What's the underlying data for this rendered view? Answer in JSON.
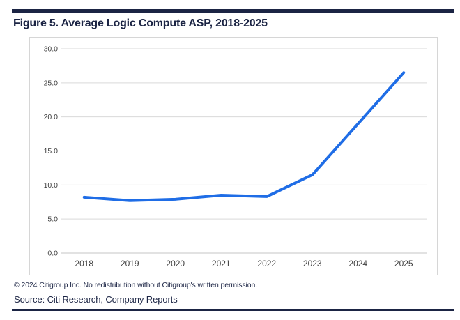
{
  "header": {
    "title": "Figure 5. Average Logic Compute ASP, 2018-2025"
  },
  "footer": {
    "copyright": "© 2024 Citigroup Inc. No redistribution without Citigroup's written permission.",
    "source": "Source: Citi Research, Company Reports"
  },
  "colors": {
    "navy": "#1b2444",
    "line": "#1f6de6",
    "gridline": "#d9d9d9",
    "axis_line": "#c4c4c4",
    "chart_border": "#d6d6d6",
    "tick_label": "#3f3f3f"
  },
  "chart_data": {
    "type": "line",
    "title": "Figure 5. Average Logic Compute ASP, 2018-2025",
    "categories": [
      "2018",
      "2019",
      "2020",
      "2021",
      "2022",
      "2023",
      "2024",
      "2025"
    ],
    "values": [
      8.2,
      7.7,
      7.9,
      8.5,
      8.3,
      11.5,
      19.0,
      26.5
    ],
    "xlabel": "",
    "ylabel": "",
    "ylim": [
      0,
      30
    ],
    "yticks": [
      {
        "value": 0,
        "label": "0.0"
      },
      {
        "value": 5,
        "label": "5.0"
      },
      {
        "value": 10,
        "label": "10.0"
      },
      {
        "value": 15,
        "label": "15.0"
      },
      {
        "value": 20,
        "label": "20.0"
      },
      {
        "value": 25,
        "label": "25.0"
      },
      {
        "value": 30,
        "label": "30.0"
      }
    ],
    "grid": true,
    "legend": false,
    "line_width": 4
  }
}
